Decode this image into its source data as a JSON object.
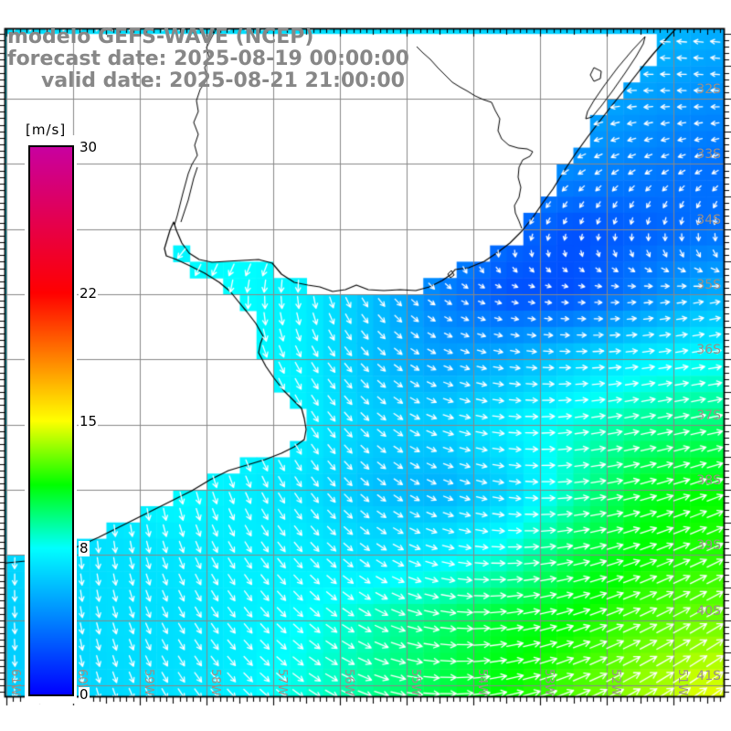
{
  "title": {
    "line1": "modelo GEFS-WAVE (NCEP)",
    "line2": "forecast date: 2025-08-19 00:00:00",
    "line3": "valid date: 2025-08-21 21:00:00"
  },
  "colorbar": {
    "unit_label": "[m/s]",
    "min": 0,
    "max": 30,
    "ticks": [
      {
        "value": 30,
        "label": "30"
      },
      {
        "value": 22,
        "label": "22"
      },
      {
        "value": 15,
        "label": "15"
      },
      {
        "value": 8,
        "label": "8"
      },
      {
        "value": 0,
        "label": "0"
      }
    ],
    "stops": [
      [
        0,
        "#0000ff"
      ],
      [
        8,
        "#00ffff"
      ],
      [
        11.5,
        "#00ff00"
      ],
      [
        15,
        "#ffff00"
      ],
      [
        22,
        "#ff0000"
      ],
      [
        30,
        "#c800a0"
      ]
    ]
  },
  "map": {
    "lat_labels": [
      {
        "deg": 32,
        "text": "32S"
      },
      {
        "deg": 33,
        "text": "33S"
      },
      {
        "deg": 34,
        "text": "34S"
      },
      {
        "deg": 35,
        "text": "35S"
      },
      {
        "deg": 36,
        "text": "36S"
      },
      {
        "deg": 37,
        "text": "37S"
      },
      {
        "deg": 38,
        "text": "38S"
      },
      {
        "deg": 39,
        "text": "39S"
      },
      {
        "deg": 40,
        "text": "40S"
      },
      {
        "deg": 41,
        "text": "41S"
      }
    ],
    "lon_labels": [
      {
        "deg": 61,
        "text": "61W"
      },
      {
        "deg": 60,
        "text": "60W"
      },
      {
        "deg": 59,
        "text": "59W"
      },
      {
        "deg": 58,
        "text": "58W"
      },
      {
        "deg": 57,
        "text": "57W"
      },
      {
        "deg": 56,
        "text": "56W"
      },
      {
        "deg": 55,
        "text": "55W"
      },
      {
        "deg": 54,
        "text": "54W"
      },
      {
        "deg": 53,
        "text": "53W"
      },
      {
        "deg": 52,
        "text": "52W"
      },
      {
        "deg": 51,
        "text": "51W"
      }
    ],
    "extent": {
      "lon_left_w": 61.027,
      "lon_right_w": 50.233,
      "lat_top_s": 30.92,
      "lat_bottom_s": 41.18
    },
    "colors": {
      "grid": "#888888",
      "coast": "#000000",
      "arrow": "#ffffff",
      "frame": "#000000",
      "title": "#878787",
      "axis_label": "#9a8f88",
      "land": "#ffffff"
    }
  },
  "wind_field": {
    "units": "m/s",
    "lats_s": [
      31,
      32,
      33,
      34,
      35,
      36,
      37,
      38,
      39,
      40,
      41,
      42
    ],
    "lons_w": [
      61.5,
      60.5,
      59.5,
      58.5,
      57.5,
      56.5,
      55.5,
      54.5,
      53.5,
      52.5,
      51.5,
      50.5
    ],
    "speed": [
      [
        7,
        7,
        7,
        7,
        7,
        7,
        7,
        7,
        6.5,
        6.5,
        6,
        5.5
      ],
      [
        7,
        7,
        7,
        7,
        7,
        7,
        7,
        6.5,
        6,
        5.5,
        5,
        4.5
      ],
      [
        7,
        7,
        7,
        7,
        7.5,
        7.5,
        7,
        6,
        5,
        4.5,
        4,
        3.5
      ],
      [
        7,
        7,
        7,
        7.5,
        8,
        8,
        7,
        5,
        3.5,
        2.5,
        3,
        3.5
      ],
      [
        7,
        7,
        7.5,
        8,
        8,
        7.5,
        6,
        4,
        2.5,
        2.5,
        4,
        5.5
      ],
      [
        7,
        7,
        7.5,
        8,
        8,
        7.5,
        6,
        5,
        5.5,
        6.5,
        7.5,
        8
      ],
      [
        7,
        7,
        7.5,
        8,
        8,
        7.5,
        6.5,
        6.5,
        7.5,
        8.5,
        9.5,
        10
      ],
      [
        7,
        7,
        7.5,
        8,
        7.5,
        7,
        6,
        5.5,
        6.5,
        9,
        11,
        11.5
      ],
      [
        6.5,
        7,
        7,
        7.2,
        7.5,
        7.5,
        7,
        7.5,
        8.5,
        10.5,
        11.5,
        12
      ],
      [
        6.5,
        6.5,
        7,
        7,
        7.5,
        8,
        9,
        10,
        11,
        11.5,
        12.5,
        13
      ],
      [
        6.5,
        6.5,
        6.8,
        7,
        7.5,
        8.5,
        9.5,
        10.5,
        11.5,
        12.5,
        13.5,
        14.5
      ],
      [
        6.5,
        6.5,
        7,
        7.2,
        8,
        9,
        10,
        11,
        12,
        13,
        14,
        15
      ]
    ],
    "dir_deg_screen": [
      [
        100,
        104,
        108,
        114,
        120,
        128,
        138,
        150,
        165,
        175,
        182,
        186
      ],
      [
        105,
        108,
        112,
        118,
        125,
        132,
        140,
        150,
        160,
        170,
        178,
        182
      ],
      [
        110,
        112,
        118,
        125,
        132,
        138,
        142,
        146,
        150,
        152,
        155,
        158
      ],
      [
        125,
        130,
        138,
        145,
        145,
        140,
        132,
        125,
        118,
        110,
        100,
        95
      ],
      [
        110,
        110,
        108,
        102,
        95,
        85,
        55,
        35,
        15,
        5,
        355,
        350
      ],
      [
        90,
        90,
        88,
        82,
        72,
        60,
        45,
        25,
        10,
        0,
        352,
        350
      ],
      [
        95,
        92,
        88,
        80,
        70,
        58,
        42,
        20,
        5,
        352,
        348,
        348
      ],
      [
        100,
        95,
        90,
        80,
        68,
        55,
        40,
        25,
        10,
        355,
        345,
        340
      ],
      [
        95,
        90,
        82,
        70,
        58,
        48,
        35,
        15,
        0,
        348,
        340,
        335
      ],
      [
        90,
        85,
        75,
        62,
        52,
        42,
        28,
        10,
        352,
        342,
        335,
        330
      ],
      [
        92,
        85,
        72,
        58,
        46,
        35,
        20,
        2,
        348,
        338,
        330,
        325
      ],
      [
        92,
        84,
        72,
        58,
        46,
        35,
        18,
        0,
        345,
        336,
        328,
        322
      ]
    ]
  },
  "coastline": {
    "land_polygon": [
      [
        0,
        31
      ],
      [
        740,
        31
      ],
      [
        728,
        44
      ],
      [
        714,
        60
      ],
      [
        700,
        77
      ],
      [
        686,
        95
      ],
      [
        670,
        115
      ],
      [
        656,
        133
      ],
      [
        643,
        150
      ],
      [
        630,
        168
      ],
      [
        618,
        186
      ],
      [
        605,
        207
      ],
      [
        594,
        222
      ],
      [
        583,
        238
      ],
      [
        571,
        253
      ],
      [
        558,
        266
      ],
      [
        545,
        276
      ],
      [
        530,
        286
      ],
      [
        513,
        293
      ],
      [
        498,
        295
      ],
      [
        494,
        300
      ],
      [
        484,
        307
      ],
      [
        470,
        314
      ],
      [
        455,
        318
      ],
      [
        438,
        317
      ],
      [
        420,
        318
      ],
      [
        403,
        317
      ],
      [
        390,
        312
      ],
      [
        378,
        317
      ],
      [
        364,
        319
      ],
      [
        350,
        314
      ],
      [
        337,
        312
      ],
      [
        322,
        309
      ],
      [
        308,
        300
      ],
      [
        298,
        288
      ],
      [
        283,
        284
      ],
      [
        265,
        285
      ],
      [
        248,
        286
      ],
      [
        232,
        287
      ],
      [
        218,
        284
      ],
      [
        207,
        277
      ],
      [
        199,
        266
      ],
      [
        193,
        252
      ],
      [
        190,
        243
      ],
      [
        186,
        252
      ],
      [
        183,
        262
      ],
      [
        180,
        272
      ],
      [
        182,
        280
      ],
      [
        193,
        284
      ],
      [
        208,
        291
      ],
      [
        224,
        299
      ],
      [
        240,
        309
      ],
      [
        252,
        319
      ],
      [
        260,
        329
      ],
      [
        270,
        341
      ],
      [
        280,
        354
      ],
      [
        288,
        368
      ],
      [
        285,
        376
      ],
      [
        283,
        386
      ],
      [
        291,
        401
      ],
      [
        300,
        414
      ],
      [
        311,
        428
      ],
      [
        322,
        439
      ],
      [
        330,
        447
      ],
      [
        333,
        458
      ],
      [
        335,
        470
      ],
      [
        333,
        481
      ],
      [
        322,
        489
      ],
      [
        308,
        496
      ],
      [
        290,
        503
      ],
      [
        270,
        509
      ],
      [
        250,
        515
      ],
      [
        230,
        525
      ],
      [
        210,
        537
      ],
      [
        190,
        547
      ],
      [
        168,
        558
      ],
      [
        148,
        568
      ],
      [
        128,
        578
      ],
      [
        108,
        588
      ],
      [
        88,
        597
      ],
      [
        68,
        605
      ],
      [
        48,
        611
      ],
      [
        28,
        614
      ],
      [
        8,
        616
      ],
      [
        0,
        617
      ]
    ],
    "rivers": [
      [
        [
          237,
          31
        ],
        [
          231,
          42
        ],
        [
          226,
          52
        ],
        [
          229,
          63
        ],
        [
          224,
          74
        ],
        [
          227,
          86
        ],
        [
          219,
          98
        ],
        [
          215,
          110
        ],
        [
          217,
          122
        ],
        [
          212,
          134
        ],
        [
          217,
          147
        ],
        [
          213,
          159
        ],
        [
          216,
          170
        ],
        [
          210,
          180
        ],
        [
          206,
          190
        ],
        [
          203,
          201
        ],
        [
          200,
          212
        ],
        [
          197,
          224
        ],
        [
          194,
          236
        ],
        [
          191,
          246
        ]
      ],
      [
        [
          216,
          183
        ],
        [
          212,
          195
        ],
        [
          209,
          207
        ],
        [
          206,
          219
        ],
        [
          202,
          231
        ],
        [
          198,
          243
        ]
      ],
      [
        [
          456,
          51
        ],
        [
          463,
          58
        ],
        [
          471,
          65
        ],
        [
          479,
          74
        ],
        [
          487,
          82
        ],
        [
          495,
          90
        ],
        [
          503,
          95
        ],
        [
          512,
          100
        ],
        [
          520,
          105
        ],
        [
          529,
          109
        ],
        [
          538,
          112
        ],
        [
          542,
          121
        ],
        [
          547,
          130
        ],
        [
          545,
          143
        ],
        [
          549,
          152
        ],
        [
          557,
          159
        ],
        [
          567,
          162
        ],
        [
          577,
          163
        ],
        [
          583,
          166
        ],
        [
          580,
          171
        ],
        [
          572,
          175
        ],
        [
          568,
          183
        ],
        [
          567,
          194
        ],
        [
          570,
          205
        ],
        [
          568,
          216
        ],
        [
          563,
          225
        ],
        [
          564,
          233
        ],
        [
          568,
          242
        ],
        [
          571,
          250
        ]
      ]
    ],
    "lagoons": [
      [
        [
          706,
          40
        ],
        [
          692,
          55
        ],
        [
          676,
          74
        ],
        [
          661,
          94
        ],
        [
          650,
          110
        ],
        [
          643,
          122
        ],
        [
          641,
          130
        ],
        [
          648,
          128
        ],
        [
          658,
          116
        ],
        [
          670,
          100
        ],
        [
          684,
          80
        ],
        [
          696,
          62
        ],
        [
          704,
          48
        ],
        [
          706,
          40
        ]
      ],
      [
        [
          650,
          74
        ],
        [
          646,
          82
        ],
        [
          650,
          89
        ],
        [
          657,
          86
        ],
        [
          658,
          78
        ],
        [
          650,
          74
        ]
      ],
      [
        [
          494,
          296
        ],
        [
          490,
          300
        ],
        [
          493,
          304
        ],
        [
          497,
          301
        ],
        [
          494,
          296
        ]
      ]
    ]
  }
}
